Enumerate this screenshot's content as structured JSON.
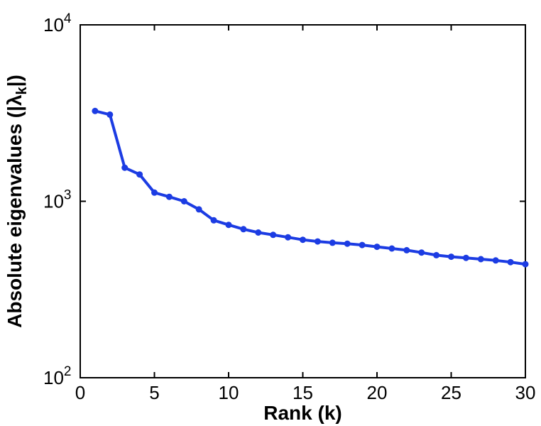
{
  "figure": {
    "background": "#ffffff",
    "axis_color": "#000000",
    "line_color": "#1c3ce3"
  },
  "chart_data": {
    "type": "line",
    "x": [
      1,
      2,
      3,
      4,
      5,
      6,
      7,
      8,
      9,
      10,
      11,
      12,
      13,
      14,
      15,
      16,
      17,
      18,
      19,
      20,
      21,
      22,
      23,
      24,
      25,
      26,
      27,
      28,
      29,
      30
    ],
    "values": [
      3250,
      3100,
      1550,
      1420,
      1120,
      1060,
      1000,
      900,
      780,
      735,
      695,
      665,
      645,
      625,
      605,
      592,
      582,
      575,
      565,
      552,
      540,
      528,
      512,
      495,
      485,
      478,
      470,
      462,
      452,
      440
    ],
    "series_name": "absolute-eigenvalues",
    "title": "",
    "xlabel": "Rank (k)",
    "ylabel_parts": [
      {
        "text": "Absolute eigenvalues (|λ",
        "style": "normal"
      },
      {
        "text": "k",
        "style": "sub"
      },
      {
        "text": "|)",
        "style": "normal"
      }
    ],
    "xlim": [
      0,
      30
    ],
    "ylim": [
      100,
      10000
    ],
    "yscale": "log",
    "xticks": [
      0,
      5,
      10,
      15,
      20,
      25,
      30
    ],
    "yticks": [
      {
        "value": 100,
        "base": "10",
        "exp": "2"
      },
      {
        "value": 1000,
        "base": "10",
        "exp": "3"
      },
      {
        "value": 10000,
        "base": "10",
        "exp": "4"
      }
    ],
    "grid": false,
    "legend": null,
    "marker": "circle"
  }
}
